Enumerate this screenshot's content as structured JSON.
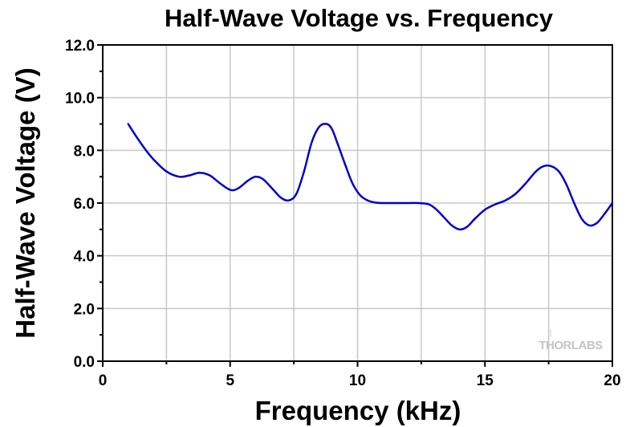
{
  "chart_data": {
    "type": "line",
    "title": "Half-Wave Voltage vs. Frequency",
    "xlabel": "Frequency (kHz)",
    "ylabel": "Half-Wave Voltage (V)",
    "xlim": [
      0,
      20
    ],
    "ylim": [
      0,
      12
    ],
    "xticks": [
      0,
      5,
      10,
      15,
      20
    ],
    "xtick_labels": [
      "0",
      "5",
      "10",
      "15",
      "20"
    ],
    "yticks": [
      0,
      2,
      4,
      6,
      8,
      10,
      12
    ],
    "ytick_labels": [
      "0.0",
      "2.0",
      "4.0",
      "6.0",
      "8.0",
      "10.0",
      "12.0"
    ],
    "grid": true,
    "watermark": "THORLABS",
    "series": [
      {
        "name": "Half-Wave Voltage",
        "color": "#0000cc",
        "x": [
          1.0,
          1.3,
          1.7,
          2.0,
          2.5,
          3.0,
          3.4,
          3.8,
          4.2,
          4.6,
          5.0,
          5.3,
          5.7,
          6.0,
          6.3,
          6.7,
          7.0,
          7.3,
          7.6,
          7.9,
          8.2,
          8.5,
          8.8,
          9.0,
          9.2,
          9.5,
          9.8,
          10.1,
          10.4,
          10.7,
          11.0,
          11.5,
          12.0,
          12.4,
          12.8,
          13.1,
          13.4,
          13.7,
          14.0,
          14.3,
          14.6,
          15.0,
          15.4,
          15.8,
          16.2,
          16.6,
          17.0,
          17.3,
          17.6,
          17.9,
          18.2,
          18.5,
          18.8,
          19.1,
          19.4,
          19.7,
          20.0
        ],
        "y": [
          9.0,
          8.55,
          8.0,
          7.65,
          7.2,
          7.0,
          7.05,
          7.15,
          7.05,
          6.75,
          6.5,
          6.55,
          6.85,
          7.0,
          6.9,
          6.5,
          6.2,
          6.1,
          6.35,
          7.2,
          8.3,
          8.9,
          9.0,
          8.8,
          8.3,
          7.5,
          6.75,
          6.3,
          6.1,
          6.02,
          6.0,
          6.0,
          6.0,
          6.0,
          5.95,
          5.75,
          5.45,
          5.15,
          5.0,
          5.1,
          5.4,
          5.75,
          5.95,
          6.1,
          6.35,
          6.75,
          7.2,
          7.4,
          7.4,
          7.2,
          6.7,
          6.0,
          5.4,
          5.15,
          5.25,
          5.6,
          6.0
        ]
      }
    ]
  }
}
